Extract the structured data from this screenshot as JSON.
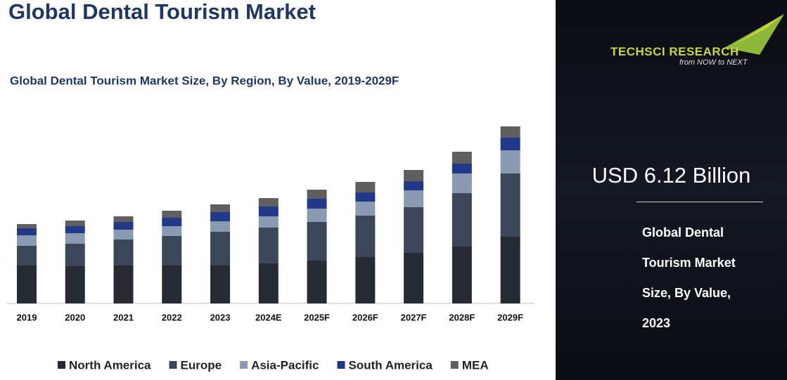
{
  "chart_data": {
    "type": "stacked-bar",
    "title": "Global Dental Tourism Market",
    "subtitle": "Global Dental Tourism Market Size, By Region, By Value, 2019-2029F",
    "categories": [
      "2019",
      "2020",
      "2021",
      "2022",
      "2023",
      "2024E",
      "2025F",
      "2026F",
      "2027F",
      "2028F",
      "2029F"
    ],
    "series": [
      {
        "name": "North America",
        "color": "#262a33",
        "values": [
          54,
          53,
          54,
          54,
          54,
          57,
          61,
          66,
          72,
          81,
          95
        ]
      },
      {
        "name": "Europe",
        "color": "#3b4659",
        "values": [
          28,
          32,
          37,
          42,
          48,
          51,
          55,
          59,
          65,
          76,
          90
        ]
      },
      {
        "name": "Asia-Pacific",
        "color": "#8a9ab3",
        "values": [
          15,
          15,
          14,
          14,
          15,
          16,
          19,
          20,
          24,
          28,
          33
        ]
      },
      {
        "name": "South America",
        "color": "#22398a",
        "values": [
          10,
          10,
          11,
          12,
          13,
          14,
          14,
          13,
          13,
          14,
          18
        ]
      },
      {
        "name": "MEA",
        "color": "#5f5f5f",
        "values": [
          6,
          8,
          8,
          10,
          11,
          12,
          13,
          15,
          16,
          17,
          16
        ]
      }
    ],
    "ylim": [
      0,
      260
    ]
  },
  "panel": {
    "brand": "TECHSCI RESEARCH",
    "tagline": "from NOW to NEXT",
    "headline": "USD 6.12 Billion",
    "caption": "Global Dental Tourism Market Size, By Value, 2023"
  }
}
